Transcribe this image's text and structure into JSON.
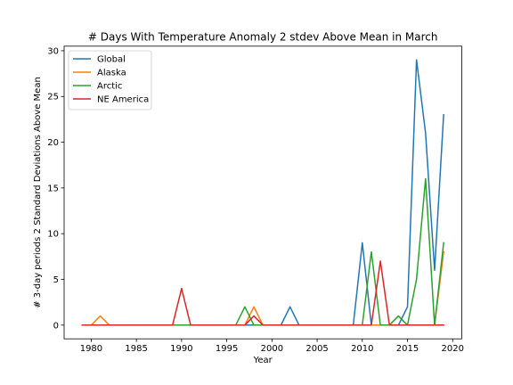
{
  "chart_data": {
    "type": "line",
    "title": "# Days With Temperature Anomaly 2 stdev Above Mean in March",
    "xlabel": "Year",
    "ylabel": "# 3-day periods 2 Standard Deviations Above Mean",
    "xlim": [
      1977,
      2021
    ],
    "ylim": [
      -1.5,
      30.5
    ],
    "xticks": [
      1980,
      1985,
      1990,
      1995,
      2000,
      2005,
      2010,
      2015,
      2020
    ],
    "yticks": [
      0,
      5,
      10,
      15,
      20,
      25,
      30
    ],
    "grid": false,
    "legend_position": "top-left",
    "x": [
      1979,
      1980,
      1981,
      1982,
      1983,
      1984,
      1985,
      1986,
      1987,
      1988,
      1989,
      1990,
      1991,
      1992,
      1993,
      1994,
      1995,
      1996,
      1997,
      1998,
      1999,
      2000,
      2001,
      2002,
      2003,
      2004,
      2005,
      2006,
      2007,
      2008,
      2009,
      2010,
      2011,
      2012,
      2013,
      2014,
      2015,
      2016,
      2017,
      2018,
      2019
    ],
    "series": [
      {
        "name": "Global",
        "color": "#1f77b4",
        "values": [
          0,
          0,
          0,
          0,
          0,
          0,
          0,
          0,
          0,
          0,
          0,
          0,
          0,
          0,
          0,
          0,
          0,
          0,
          0,
          0,
          0,
          0,
          0,
          2,
          0,
          0,
          0,
          0,
          0,
          0,
          0,
          9,
          0,
          0,
          0,
          0,
          2,
          29,
          21,
          6,
          23
        ]
      },
      {
        "name": "Alaska",
        "color": "#ff7f0e",
        "values": [
          0,
          0,
          1,
          0,
          0,
          0,
          0,
          0,
          0,
          0,
          0,
          0,
          0,
          0,
          0,
          0,
          0,
          0,
          0,
          2,
          0,
          0,
          0,
          0,
          0,
          0,
          0,
          0,
          0,
          0,
          0,
          0,
          0,
          0,
          0,
          0,
          0,
          0,
          0,
          0,
          8
        ]
      },
      {
        "name": "Arctic",
        "color": "#2ca02c",
        "values": [
          0,
          0,
          0,
          0,
          0,
          0,
          0,
          0,
          0,
          0,
          0,
          0,
          0,
          0,
          0,
          0,
          0,
          0,
          2,
          0,
          0,
          0,
          0,
          0,
          0,
          0,
          0,
          0,
          0,
          0,
          0,
          0,
          8,
          0,
          0,
          1,
          0,
          5,
          16,
          0,
          9
        ]
      },
      {
        "name": "NE America",
        "color": "#d62728",
        "values": [
          0,
          0,
          0,
          0,
          0,
          0,
          0,
          0,
          0,
          0,
          0,
          4,
          0,
          0,
          0,
          0,
          0,
          0,
          0,
          1,
          0,
          0,
          0,
          0,
          0,
          0,
          0,
          0,
          0,
          0,
          0,
          0,
          0,
          7,
          0,
          0,
          0,
          0,
          0,
          0,
          0
        ]
      }
    ]
  }
}
